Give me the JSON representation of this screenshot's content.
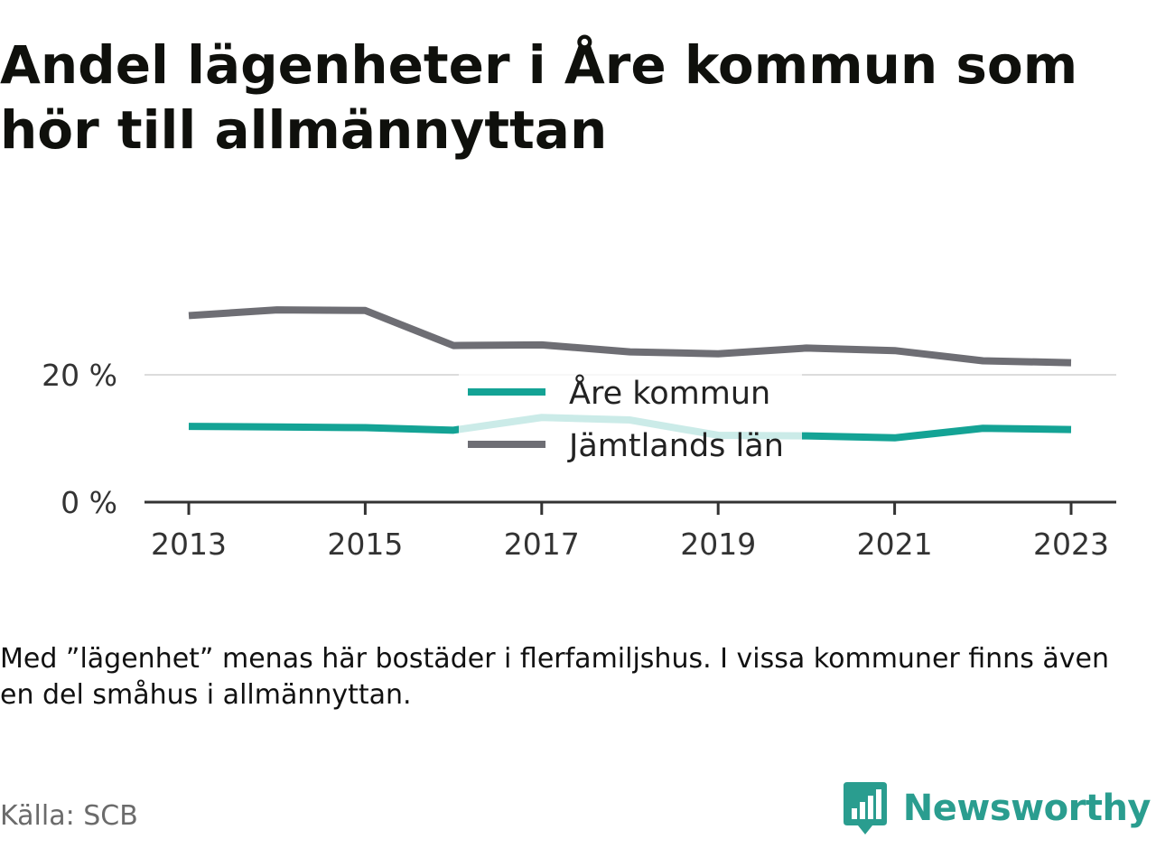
{
  "title": "Andel lägenheter i Åre kommun som hör till allmännyttan",
  "note": "Med ”lägenhet” menas här bostäder i flerfamiljshus. I vissa kommuner finns även en del småhus i allmännyttan.",
  "source": "Källa: SCB",
  "brand": {
    "name": "Newsworthy",
    "icon": "bar-chart-speech-bubble-icon",
    "color": "#2a9d8f"
  },
  "chart_data": {
    "type": "line",
    "x": [
      2013,
      2014,
      2015,
      2016,
      2017,
      2018,
      2019,
      2020,
      2021,
      2022,
      2023
    ],
    "x_ticks": [
      "2013",
      "2015",
      "2017",
      "2019",
      "2021",
      "2023"
    ],
    "y_ticks": [
      "0 %",
      "20 %"
    ],
    "ylim": [
      0,
      30
    ],
    "grid": true,
    "legend_position": "center",
    "series": [
      {
        "name": "Åre kommun",
        "color": "#14a395",
        "values": [
          11.9,
          11.8,
          11.7,
          11.3,
          13.3,
          12.9,
          10.5,
          10.4,
          10.1,
          11.6,
          11.4
        ]
      },
      {
        "name": "Jämtlands län",
        "color": "#6e6e74",
        "values": [
          29.3,
          30.2,
          30.1,
          24.6,
          24.7,
          23.6,
          23.3,
          24.2,
          23.8,
          22.2,
          21.9
        ]
      }
    ]
  }
}
